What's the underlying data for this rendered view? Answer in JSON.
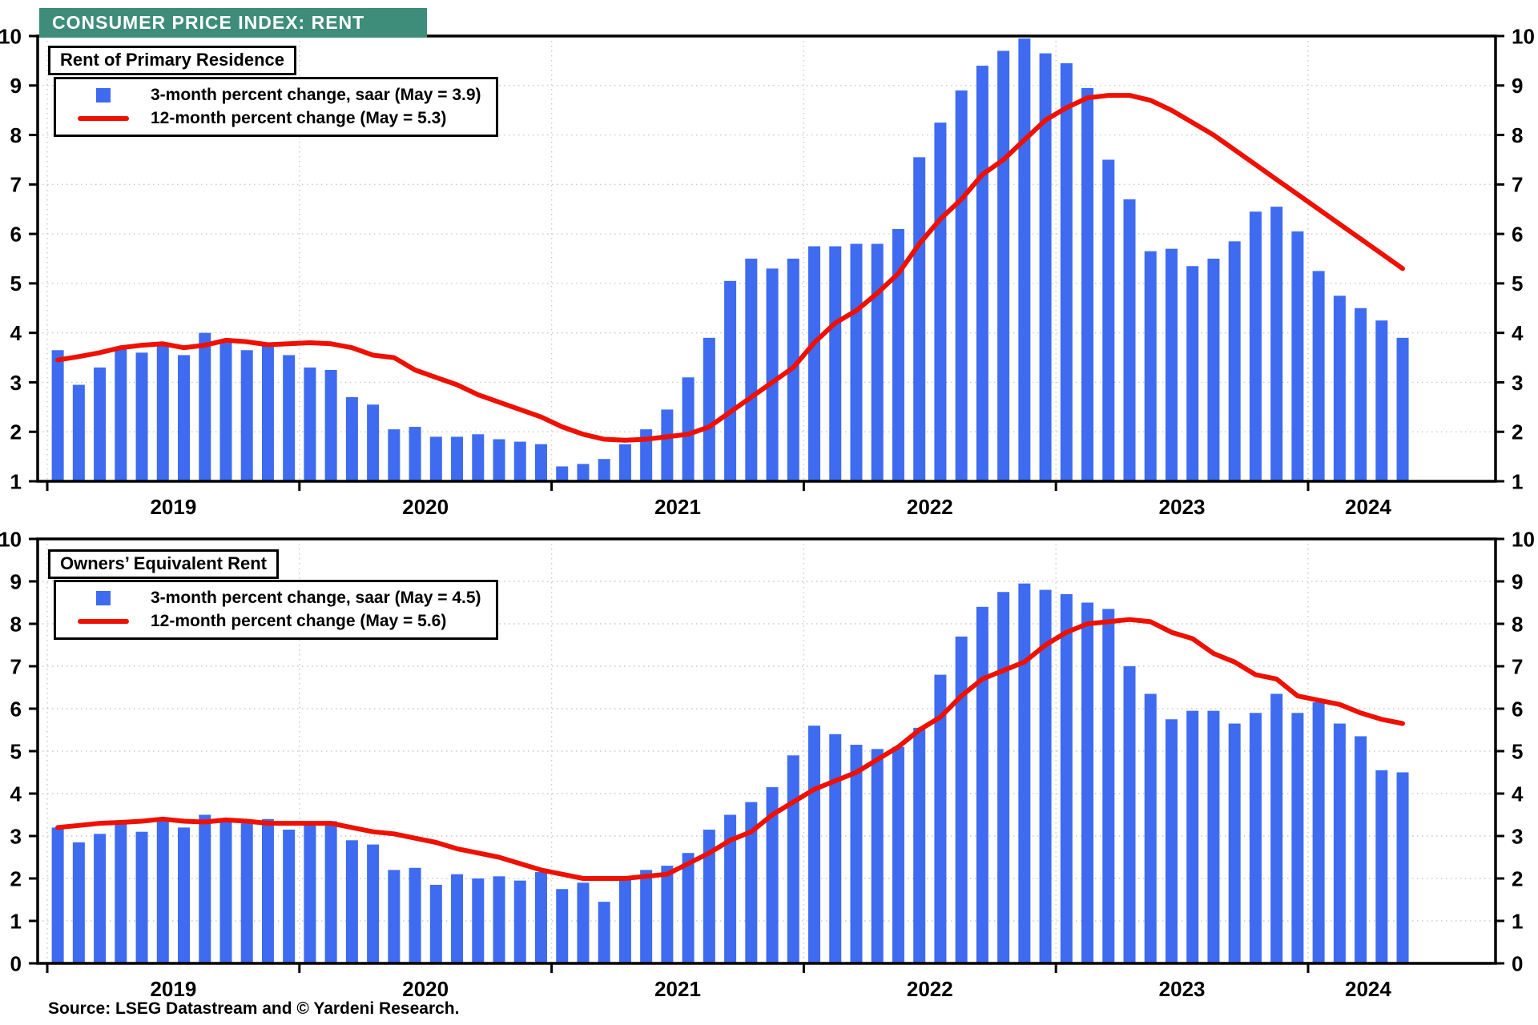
{
  "title": "CONSUMER PRICE INDEX: RENT",
  "source": "Source: LSEG Datastream and © Yardeni Research.",
  "colors": {
    "title_teal": "#3E8C7A",
    "bar_blue": "#3E6BF0",
    "line_red": "#EE1000",
    "grid_gray": "#c9c9c9"
  },
  "x_years": [
    "2019",
    "2020",
    "2021",
    "2022",
    "2023",
    "2024"
  ],
  "chart_data": [
    {
      "type": "bar+line",
      "panel_label": "Rent of Primary Residence",
      "legend": [
        {
          "marker": "square",
          "label": "3-month percent change, saar (May = 3.9)"
        },
        {
          "marker": "line",
          "label": "12-month percent change  (May = 5.3)"
        }
      ],
      "start_month": "2019-01",
      "end_month": "2024-05",
      "ylim": [
        1,
        10
      ],
      "yticks": [
        1,
        2,
        3,
        4,
        5,
        6,
        7,
        8,
        9,
        10
      ],
      "grid": "dotted",
      "legend_position": "top-left",
      "bars_name": "3-month percent change, saar",
      "line_name": "12-month percent change",
      "bars": [
        3.65,
        2.95,
        3.3,
        3.7,
        3.6,
        3.8,
        3.55,
        4.0,
        3.8,
        3.65,
        3.75,
        3.55,
        3.3,
        3.25,
        2.7,
        2.55,
        2.05,
        2.1,
        1.9,
        1.9,
        1.95,
        1.85,
        1.8,
        1.75,
        1.3,
        1.35,
        1.45,
        1.75,
        2.05,
        2.45,
        3.1,
        3.9,
        5.05,
        5.5,
        5.3,
        5.5,
        5.75,
        5.75,
        5.8,
        5.8,
        6.1,
        7.55,
        8.25,
        8.9,
        9.4,
        9.7,
        9.95,
        9.65,
        9.45,
        8.95,
        7.5,
        6.7,
        5.65,
        5.7,
        5.35,
        5.5,
        5.85,
        6.45,
        6.55,
        6.05,
        5.25,
        4.75,
        4.5,
        4.25,
        3.9
      ],
      "line": [
        3.45,
        3.52,
        3.6,
        3.7,
        3.75,
        3.78,
        3.7,
        3.75,
        3.85,
        3.82,
        3.76,
        3.78,
        3.8,
        3.78,
        3.7,
        3.55,
        3.5,
        3.25,
        3.1,
        2.95,
        2.75,
        2.6,
        2.45,
        2.3,
        2.1,
        1.95,
        1.85,
        1.83,
        1.85,
        1.9,
        1.95,
        2.1,
        2.4,
        2.7,
        3.0,
        3.3,
        3.8,
        4.2,
        4.45,
        4.8,
        5.2,
        5.8,
        6.3,
        6.7,
        7.2,
        7.5,
        7.9,
        8.3,
        8.55,
        8.75,
        8.8,
        8.8,
        8.7,
        8.5,
        8.25,
        8.0,
        7.7,
        7.4,
        7.1,
        6.8,
        6.5,
        6.2,
        5.9,
        5.6,
        5.3
      ]
    },
    {
      "type": "bar+line",
      "panel_label": "Owners’ Equivalent Rent",
      "legend": [
        {
          "marker": "square",
          "label": "3-month percent change, saar (May = 4.5)"
        },
        {
          "marker": "line",
          "label": "12-month percent change (May = 5.6)"
        }
      ],
      "start_month": "2019-01",
      "end_month": "2024-05",
      "ylim": [
        0,
        10
      ],
      "yticks": [
        0,
        1,
        2,
        3,
        4,
        5,
        6,
        7,
        8,
        9,
        10
      ],
      "grid": "dotted",
      "legend_position": "top-left",
      "bars_name": "3-month percent change, saar",
      "line_name": "12-month percent change",
      "bars": [
        3.2,
        2.85,
        3.05,
        3.3,
        3.1,
        3.35,
        3.2,
        3.5,
        3.35,
        3.3,
        3.4,
        3.15,
        3.3,
        3.35,
        2.9,
        2.8,
        2.2,
        2.25,
        1.85,
        2.1,
        2.0,
        2.05,
        1.95,
        2.15,
        1.75,
        1.9,
        1.45,
        2.0,
        2.2,
        2.3,
        2.6,
        3.15,
        3.5,
        3.8,
        4.15,
        4.9,
        5.6,
        5.4,
        5.15,
        5.05,
        5.1,
        5.55,
        6.8,
        7.7,
        8.4,
        8.75,
        8.95,
        8.8,
        8.7,
        8.5,
        8.35,
        7.0,
        6.35,
        5.75,
        5.95,
        5.95,
        5.65,
        5.9,
        6.35,
        5.9,
        6.15,
        5.65,
        5.35,
        4.55,
        4.5
      ],
      "line": [
        3.2,
        3.25,
        3.3,
        3.32,
        3.35,
        3.4,
        3.35,
        3.33,
        3.38,
        3.35,
        3.3,
        3.3,
        3.3,
        3.3,
        3.2,
        3.1,
        3.05,
        2.95,
        2.85,
        2.7,
        2.6,
        2.5,
        2.35,
        2.2,
        2.1,
        2.0,
        2.0,
        2.0,
        2.05,
        2.1,
        2.35,
        2.6,
        2.9,
        3.1,
        3.5,
        3.8,
        4.1,
        4.3,
        4.5,
        4.8,
        5.1,
        5.5,
        5.8,
        6.3,
        6.7,
        6.9,
        7.1,
        7.5,
        7.8,
        8.0,
        8.05,
        8.1,
        8.05,
        7.8,
        7.65,
        7.3,
        7.1,
        6.8,
        6.7,
        6.3,
        6.2,
        6.1,
        5.9,
        5.75,
        5.65
      ]
    }
  ]
}
